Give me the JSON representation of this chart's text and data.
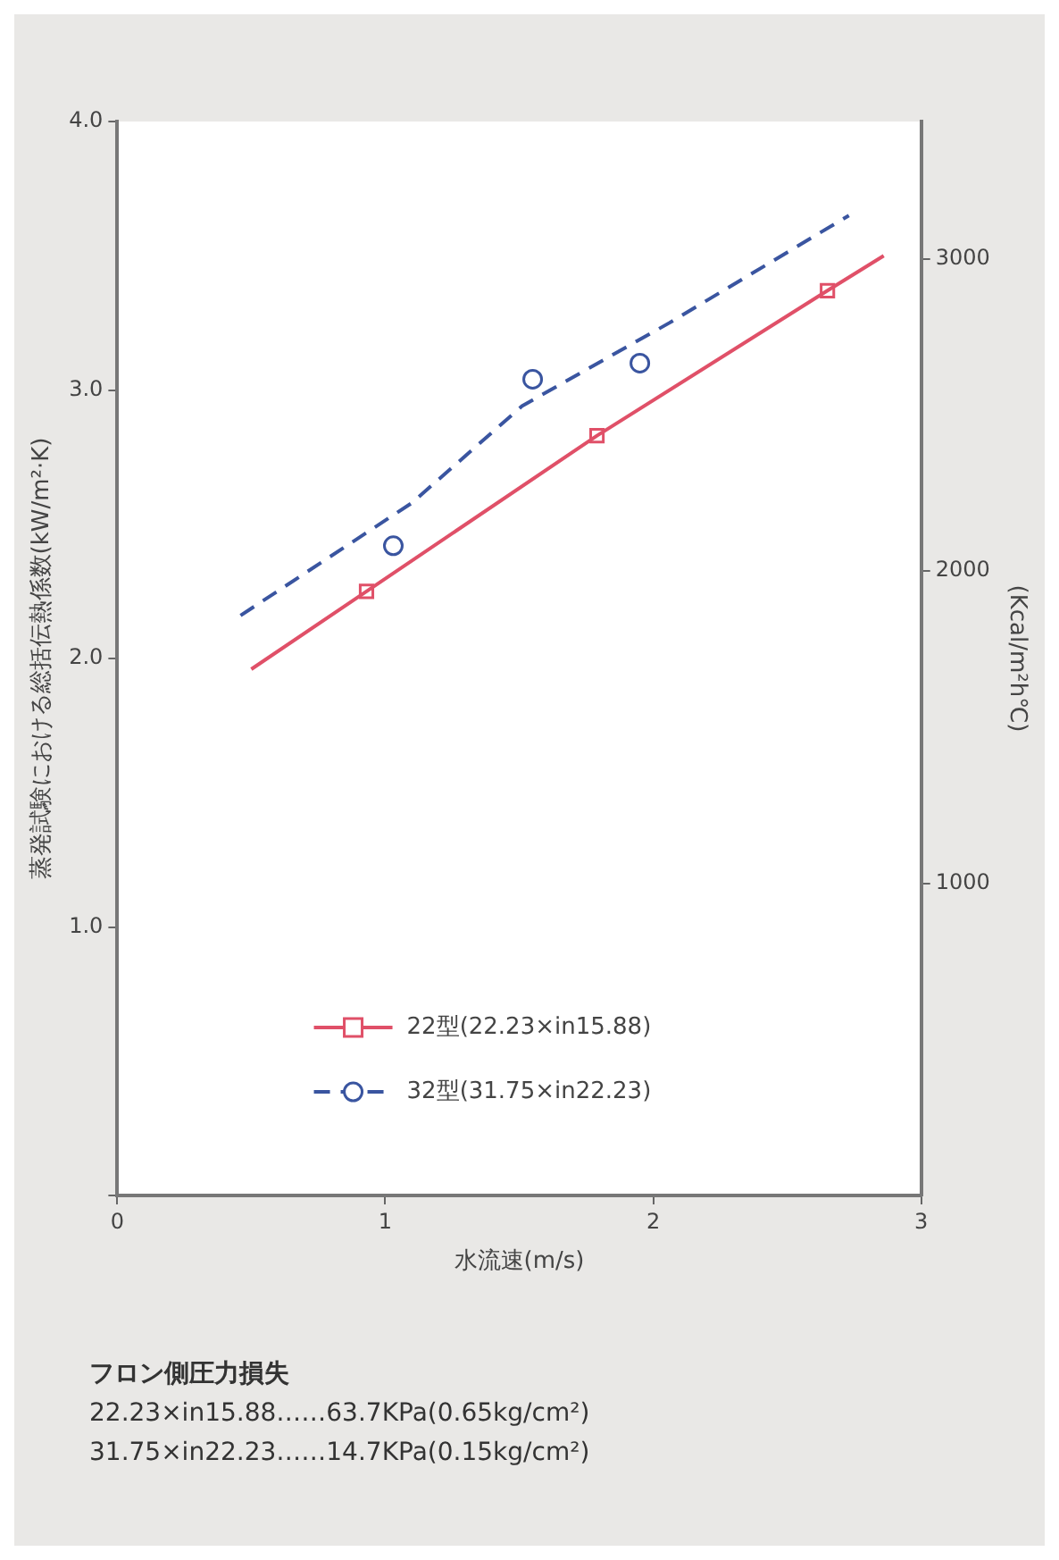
{
  "chart_data": {
    "type": "line",
    "xlabel": "水流速(m/s)",
    "ylabel": "蒸発試験における総括伝熱係数(kW/m²·K)",
    "y2label": "(Kcal/m²h℃)",
    "xlim": [
      0,
      3
    ],
    "xticks": [
      0,
      1,
      2,
      3
    ],
    "ylim": [
      0,
      4
    ],
    "yticks": [
      {
        "value": 0,
        "label": null
      },
      {
        "value": 1,
        "label": "1.0"
      },
      {
        "value": 2,
        "label": "2.0"
      },
      {
        "value": 3,
        "label": "3.0"
      },
      {
        "value": 4,
        "label": "4.0"
      }
    ],
    "y2lim": [
      0,
      3440
    ],
    "y2ticks": [
      1000,
      2000,
      3000
    ],
    "grid": false,
    "legend": "bottom",
    "series": [
      {
        "name": "22型(22.23×in15.88)",
        "color": "#e05068",
        "line_style": "solid",
        "x": [
          0.5,
          0.93,
          1.79,
          2.65,
          2.86
        ],
        "values": [
          1.96,
          2.25,
          2.83,
          3.37,
          3.5
        ]
      },
      {
        "name": "32型(31.75×in22.23)",
        "color": "#3a55a0",
        "line_style": "dashed",
        "x": [
          0.46,
          1.1,
          1.51,
          2.06,
          2.73
        ],
        "values": [
          2.16,
          2.58,
          2.94,
          3.25,
          3.65
        ]
      },
      {
        "type": "scatter",
        "color": "#e05068",
        "marker": "square",
        "x": [
          0.93,
          1.79,
          2.65
        ],
        "values": [
          2.25,
          2.83,
          3.37
        ]
      },
      {
        "type": "scatter",
        "color": "#3a55a0",
        "marker": "circle",
        "x": [
          1.03,
          1.55,
          1.95
        ],
        "values": [
          2.42,
          3.04,
          3.1
        ]
      }
    ],
    "annotations": [
      "フロン側圧力損失",
      "22.23×in15.88……63.7KPa(0.65kg/cm²)",
      "31.75×in22.23……14.7KPa(0.15kg/cm²)"
    ]
  }
}
